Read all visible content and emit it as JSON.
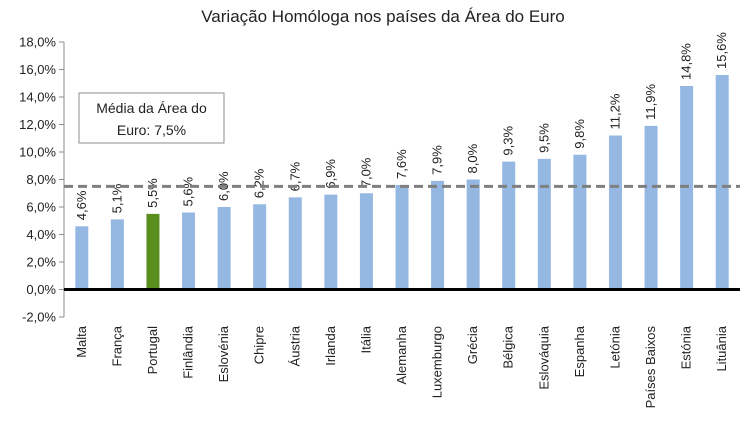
{
  "chart_data": {
    "type": "bar",
    "title": "Variação Homóloga nos países da Área do Euro",
    "categories": [
      "Malta",
      "França",
      "Portugal",
      "Finlândia",
      "Eslovénia",
      "Chipre",
      "Áustria",
      "Irlanda",
      "Itália",
      "Alemanha",
      "Luxemburgo",
      "Grécia",
      "Bélgica",
      "Eslováquia",
      "Espanha",
      "Letónia",
      "Países Baixos",
      "Estónia",
      "Lituânia"
    ],
    "values": [
      4.6,
      5.1,
      5.5,
      5.6,
      6.0,
      6.2,
      6.7,
      6.9,
      7.0,
      7.6,
      7.9,
      8.0,
      9.3,
      9.5,
      9.8,
      11.2,
      11.9,
      14.8,
      15.6
    ],
    "data_labels": [
      "4,6%",
      "5,1%",
      "5,5%",
      "5,6%",
      "6,0%",
      "6,2%",
      "6,7%",
      "6,9%",
      "7,0%",
      "7,6%",
      "7,9%",
      "8,0%",
      "9,3%",
      "9,5%",
      "9,8%",
      "11,2%",
      "11,9%",
      "14,8%",
      "15,6%"
    ],
    "highlight_category": "Portugal",
    "colors": {
      "bar": "#95b8e3",
      "highlight": "#5a8f1f",
      "reference_line": "#7f7f7f",
      "zero_line": "#000000"
    },
    "ylim": [
      -2,
      18
    ],
    "yticks": [
      -2,
      0,
      2,
      4,
      6,
      8,
      10,
      12,
      14,
      16,
      18
    ],
    "ytick_labels": [
      "-2,0%",
      "0,0%",
      "2,0%",
      "4,0%",
      "6,0%",
      "8,0%",
      "10,0%",
      "12,0%",
      "14,0%",
      "16,0%",
      "18,0%"
    ],
    "xlabel": "",
    "ylabel": "",
    "grid": false,
    "legend": "none",
    "reference_line": {
      "value": 7.5,
      "style": "dashed",
      "annotation_line1": "Média da Área do",
      "annotation_line2": "Euro: 7,5%"
    }
  }
}
